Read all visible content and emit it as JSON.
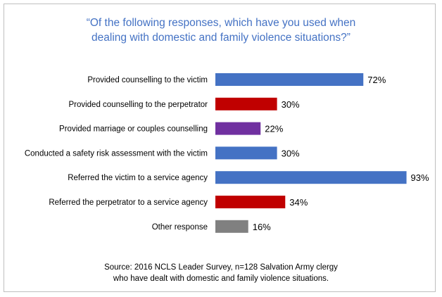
{
  "chart_data": {
    "type": "bar",
    "orientation": "horizontal",
    "title_lines": [
      "“Of the following responses, which have you used when",
      "dealing with domestic and family violence situations?”"
    ],
    "categories": [
      "Provided counselling to the victim",
      "Provided counselling to the perpetrator",
      "Provided marriage or couples counselling",
      "Conducted a safety risk assessment with the victim",
      "Referred the victim to a service agency",
      "Referred the perpetrator to a service agency",
      "Other response"
    ],
    "values": [
      72,
      30,
      22,
      30,
      93,
      34,
      16
    ],
    "value_labels": [
      "72%",
      "30%",
      "22%",
      "30%",
      "93%",
      "34%",
      "16%"
    ],
    "bar_colors": [
      "#4472c4",
      "#c00000",
      "#7030a0",
      "#4472c4",
      "#4472c4",
      "#c00000",
      "#808080"
    ],
    "xlim": [
      0,
      100
    ],
    "grid": false,
    "legend": "none"
  },
  "source_lines": [
    "Source: 2016 NCLS Leader Survey, n=128 Salvation Army clergy",
    "who have dealt with domestic and family violence situations."
  ]
}
